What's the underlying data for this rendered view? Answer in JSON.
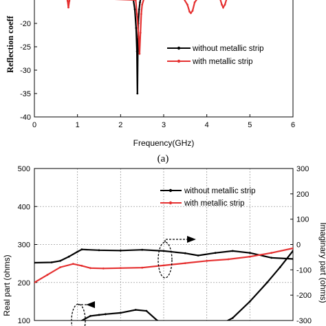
{
  "chart_data": [
    {
      "type": "line",
      "caption": "(a)",
      "xlabel": "Frequency(GHz)",
      "ylabel": "Reflection coeff",
      "xlim": [
        0,
        6
      ],
      "ylim": [
        -40,
        -15
      ],
      "xticks": [
        "0",
        "1",
        "2",
        "3",
        "4",
        "5",
        "6"
      ],
      "yticks": [
        "-20",
        "-25",
        "-30",
        "-35",
        "-40"
      ],
      "grid": false,
      "legend_position": "center-right",
      "series": [
        {
          "name": "without metallic strip",
          "color": "#000000",
          "x": [
            2.28,
            2.33,
            2.36,
            2.38,
            2.39,
            2.4,
            2.41,
            2.43,
            2.45,
            2.48
          ],
          "y": [
            -14,
            -17,
            -21,
            -26,
            -35,
            -26,
            -20,
            -17,
            -15.5,
            -14
          ]
        },
        {
          "name": "with   metallic strip",
          "color": "#e53030",
          "x": [
            0.75,
            0.77,
            0.79,
            0.81,
            0.83,
            2.35,
            2.38,
            2.42,
            2.44,
            2.46,
            2.48,
            2.5,
            2.55,
            3.45,
            3.55,
            3.6,
            3.63,
            3.67,
            3.72,
            3.8,
            4.3,
            4.35,
            4.38,
            4.42,
            4.47
          ],
          "y": [
            -14.5,
            -15.2,
            -16.6,
            -15.2,
            -14.5,
            -15,
            -18,
            -23,
            -26.5,
            -22,
            -18,
            -16,
            -14.5,
            -14.5,
            -16,
            -17.5,
            -17.8,
            -17.3,
            -15.5,
            -14.5,
            -14.5,
            -16,
            -16.6,
            -16,
            -14.5
          ]
        }
      ]
    },
    {
      "type": "line",
      "ylabel": "Real part (ohms)",
      "y2label": "Imaginary part (ohms)",
      "xlim": [
        0,
        6
      ],
      "ylim": [
        100,
        500
      ],
      "y2lim": [
        -300,
        300
      ],
      "yticks": [
        "500",
        "400",
        "300",
        "200",
        "100"
      ],
      "y2ticks": [
        "300",
        "200",
        "100",
        "0",
        "-100",
        "-200",
        "-300"
      ],
      "grid": true,
      "legend_position": "top-right",
      "series": [
        {
          "name": "without metallic strip",
          "axis": "left",
          "color": "#000000",
          "x": [
            0,
            0.4,
            0.6,
            0.8,
            1.0,
            1.1,
            1.5,
            2.0,
            2.5,
            3.0,
            3.5,
            3.8,
            4.2,
            4.6,
            5.0,
            5.5,
            6.0
          ],
          "y": [
            252,
            253,
            257,
            268,
            281,
            287,
            285,
            284,
            286,
            283,
            277,
            271,
            278,
            283,
            278,
            265,
            262
          ]
        },
        {
          "name": "with   metallic strip",
          "axis": "left",
          "color": "#e53030",
          "x": [
            0,
            0.3,
            0.6,
            0.9,
            1.1,
            1.3,
            1.6,
            2.0,
            2.5,
            3.0,
            3.5,
            4.0,
            4.5,
            5.0,
            5.5,
            6.0
          ],
          "y": [
            200,
            220,
            240,
            249,
            244,
            238,
            237,
            238,
            239,
            245,
            251,
            257,
            261,
            268,
            278,
            290
          ]
        },
        {
          "axis": "right",
          "color": "#000000",
          "x": [
            0.95,
            1.05,
            1.3,
            1.5,
            1.65
          ],
          "y": [
            -325,
            -305,
            -282,
            -278,
            -275
          ]
        },
        {
          "axis": "right",
          "color": "#000000",
          "x": [
            1.65,
            2.0,
            2.35,
            2.6,
            2.85,
            3.05
          ],
          "y": [
            -275,
            -270,
            -258,
            -262,
            -300,
            -330
          ]
        },
        {
          "axis": "right",
          "color": "#000000",
          "x": [
            4.15,
            4.6,
            5.0,
            5.4,
            5.7,
            6.0
          ],
          "y": [
            -330,
            -290,
            -225,
            -150,
            -90,
            -25
          ]
        }
      ]
    }
  ]
}
